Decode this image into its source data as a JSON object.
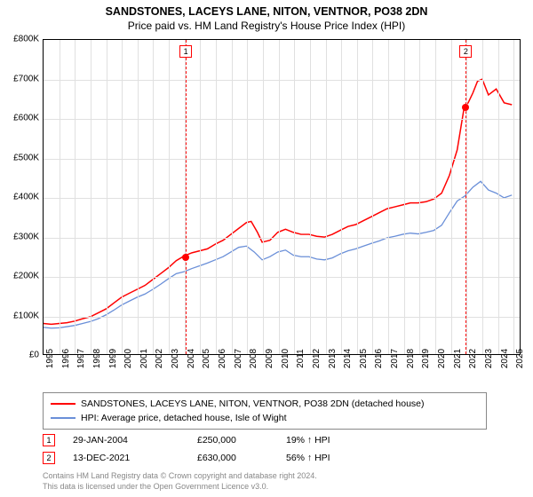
{
  "title": "SANDSTONES, LACEYS LANE, NITON, VENTNOR, PO38 2DN",
  "subtitle": "Price paid vs. HM Land Registry's House Price Index (HPI)",
  "chart": {
    "type": "line",
    "xlim": [
      1995,
      2025.5
    ],
    "ylim": [
      0,
      800000
    ],
    "ytick_step": 100000,
    "y_ticks_labels": [
      "£0",
      "£100K",
      "£200K",
      "£300K",
      "£400K",
      "£500K",
      "£600K",
      "£700K",
      "£800K"
    ],
    "x_ticks": [
      1995,
      1996,
      1997,
      1998,
      1999,
      2000,
      2001,
      2002,
      2003,
      2004,
      2005,
      2006,
      2007,
      2008,
      2009,
      2010,
      2011,
      2012,
      2013,
      2014,
      2015,
      2016,
      2017,
      2018,
      2019,
      2020,
      2021,
      2022,
      2023,
      2024,
      2025
    ],
    "grid_color": "#e0e0e0",
    "background_color": "#ffffff",
    "series": [
      {
        "name": "price_paid",
        "label": "SANDSTONES, LACEYS LANE, NITON, VENTNOR, PO38 2DN (detached house)",
        "color": "#ff0000",
        "line_width": 1.5,
        "points": [
          [
            1995,
            78000
          ],
          [
            1995.5,
            76000
          ],
          [
            1996,
            78000
          ],
          [
            1996.5,
            80000
          ],
          [
            1997,
            84000
          ],
          [
            1997.5,
            90000
          ],
          [
            1998,
            95000
          ],
          [
            1998.5,
            105000
          ],
          [
            1999,
            115000
          ],
          [
            1999.5,
            130000
          ],
          [
            2000,
            145000
          ],
          [
            2000.5,
            155000
          ],
          [
            2001,
            165000
          ],
          [
            2001.5,
            175000
          ],
          [
            2002,
            190000
          ],
          [
            2002.5,
            205000
          ],
          [
            2003,
            220000
          ],
          [
            2003.5,
            238000
          ],
          [
            2004,
            250000
          ],
          [
            2004.5,
            258000
          ],
          [
            2005,
            263000
          ],
          [
            2005.5,
            268000
          ],
          [
            2006,
            280000
          ],
          [
            2006.5,
            290000
          ],
          [
            2007,
            305000
          ],
          [
            2007.5,
            320000
          ],
          [
            2008,
            335000
          ],
          [
            2008.3,
            338000
          ],
          [
            2008.7,
            310000
          ],
          [
            2009,
            285000
          ],
          [
            2009.5,
            290000
          ],
          [
            2010,
            310000
          ],
          [
            2010.5,
            318000
          ],
          [
            2011,
            310000
          ],
          [
            2011.5,
            305000
          ],
          [
            2012,
            305000
          ],
          [
            2012.5,
            300000
          ],
          [
            2013,
            298000
          ],
          [
            2013.5,
            305000
          ],
          [
            2014,
            315000
          ],
          [
            2014.5,
            325000
          ],
          [
            2015,
            330000
          ],
          [
            2015.5,
            340000
          ],
          [
            2016,
            350000
          ],
          [
            2016.5,
            360000
          ],
          [
            2017,
            370000
          ],
          [
            2017.5,
            375000
          ],
          [
            2018,
            380000
          ],
          [
            2018.5,
            385000
          ],
          [
            2019,
            385000
          ],
          [
            2019.5,
            388000
          ],
          [
            2020,
            395000
          ],
          [
            2020.5,
            410000
          ],
          [
            2021,
            455000
          ],
          [
            2021.5,
            520000
          ],
          [
            2021.95,
            630000
          ],
          [
            2022.2,
            640000
          ],
          [
            2022.5,
            665000
          ],
          [
            2022.8,
            695000
          ],
          [
            2023.1,
            700000
          ],
          [
            2023.5,
            660000
          ],
          [
            2024,
            675000
          ],
          [
            2024.5,
            640000
          ],
          [
            2025,
            635000
          ]
        ]
      },
      {
        "name": "hpi",
        "label": "HPI: Average price, detached house, Isle of Wight",
        "color": "#6a8fd8",
        "line_width": 1.3,
        "points": [
          [
            1995,
            68000
          ],
          [
            1995.5,
            66000
          ],
          [
            1996,
            67000
          ],
          [
            1996.5,
            70000
          ],
          [
            1997,
            73000
          ],
          [
            1997.5,
            78000
          ],
          [
            1998,
            83000
          ],
          [
            1998.5,
            90000
          ],
          [
            1999,
            100000
          ],
          [
            1999.5,
            112000
          ],
          [
            2000,
            125000
          ],
          [
            2000.5,
            135000
          ],
          [
            2001,
            145000
          ],
          [
            2001.5,
            153000
          ],
          [
            2002,
            165000
          ],
          [
            2002.5,
            178000
          ],
          [
            2003,
            192000
          ],
          [
            2003.5,
            205000
          ],
          [
            2004,
            210000
          ],
          [
            2004.5,
            218000
          ],
          [
            2005,
            225000
          ],
          [
            2005.5,
            232000
          ],
          [
            2006,
            240000
          ],
          [
            2006.5,
            248000
          ],
          [
            2007,
            260000
          ],
          [
            2007.5,
            272000
          ],
          [
            2008,
            275000
          ],
          [
            2008.5,
            260000
          ],
          [
            2009,
            240000
          ],
          [
            2009.5,
            248000
          ],
          [
            2010,
            260000
          ],
          [
            2010.5,
            265000
          ],
          [
            2011,
            252000
          ],
          [
            2011.5,
            248000
          ],
          [
            2012,
            248000
          ],
          [
            2012.5,
            242000
          ],
          [
            2013,
            240000
          ],
          [
            2013.5,
            245000
          ],
          [
            2014,
            255000
          ],
          [
            2014.5,
            263000
          ],
          [
            2015,
            268000
          ],
          [
            2015.5,
            275000
          ],
          [
            2016,
            282000
          ],
          [
            2016.5,
            288000
          ],
          [
            2017,
            296000
          ],
          [
            2017.5,
            300000
          ],
          [
            2018,
            305000
          ],
          [
            2018.5,
            308000
          ],
          [
            2019,
            306000
          ],
          [
            2019.5,
            310000
          ],
          [
            2020,
            315000
          ],
          [
            2020.5,
            328000
          ],
          [
            2021,
            360000
          ],
          [
            2021.5,
            390000
          ],
          [
            2022,
            403000
          ],
          [
            2022.5,
            425000
          ],
          [
            2023,
            440000
          ],
          [
            2023.5,
            418000
          ],
          [
            2024,
            410000
          ],
          [
            2024.5,
            398000
          ],
          [
            2025,
            405000
          ]
        ]
      }
    ],
    "markers": [
      {
        "id": "1",
        "x": 2004.08,
        "y": 250000
      },
      {
        "id": "2",
        "x": 2021.95,
        "y": 630000
      }
    ]
  },
  "legend": {
    "items": [
      {
        "color": "#ff0000",
        "label": "SANDSTONES, LACEYS LANE, NITON, VENTNOR, PO38 2DN (detached house)"
      },
      {
        "color": "#6a8fd8",
        "label": "HPI: Average price, detached house, Isle of Wight"
      }
    ]
  },
  "sales": [
    {
      "id": "1",
      "date": "29-JAN-2004",
      "price": "£250,000",
      "pct": "19% ↑ HPI"
    },
    {
      "id": "2",
      "date": "13-DEC-2021",
      "price": "£630,000",
      "pct": "56% ↑ HPI"
    }
  ],
  "attribution": {
    "line1": "Contains HM Land Registry data © Crown copyright and database right 2024.",
    "line2": "This data is licensed under the Open Government Licence v3.0."
  }
}
